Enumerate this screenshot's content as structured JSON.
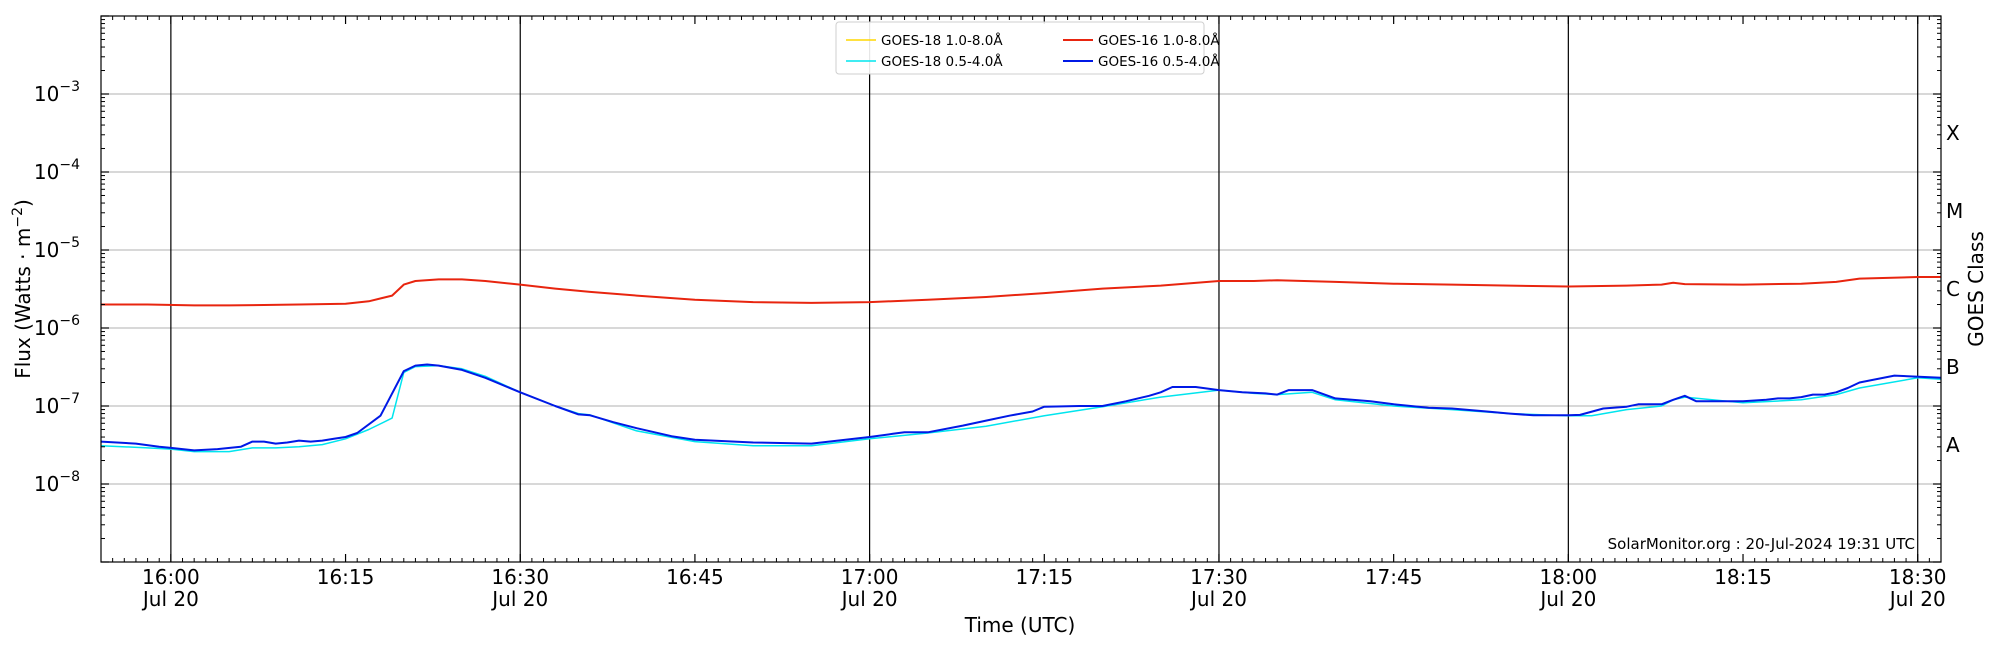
{
  "chart_data": {
    "type": "line",
    "title": "",
    "xlabel": "Time (UTC)",
    "ylabel": "Flux (Watts · m",
    "ylabel_exp": "−2",
    "ylabel_close": ")",
    "y2label": "GOES Class",
    "yscale": "log",
    "ylim": [
      1e-09,
      0.01
    ],
    "xlim": [
      "2024-07-20 15:54",
      "2024-07-20 18:32"
    ],
    "grid": "horizontal",
    "legend_placement": "top-center",
    "watermark": "SolarMonitor.org : 20-Jul-2024 19:31 UTC",
    "x_ticks": [
      {
        "t": "16:00",
        "label": "16:00",
        "sublabel": "Jul 20"
      },
      {
        "t": "16:15",
        "label": "16:15",
        "sublabel": ""
      },
      {
        "t": "16:30",
        "label": "16:30",
        "sublabel": "Jul 20"
      },
      {
        "t": "16:45",
        "label": "16:45",
        "sublabel": ""
      },
      {
        "t": "17:00",
        "label": "17:00",
        "sublabel": "Jul 20"
      },
      {
        "t": "17:15",
        "label": "17:15",
        "sublabel": ""
      },
      {
        "t": "17:30",
        "label": "17:30",
        "sublabel": "Jul 20"
      },
      {
        "t": "17:45",
        "label": "17:45",
        "sublabel": ""
      },
      {
        "t": "18:00",
        "label": "18:00",
        "sublabel": "Jul 20"
      },
      {
        "t": "18:15",
        "label": "18:15",
        "sublabel": ""
      },
      {
        "t": "18:30",
        "label": "18:30",
        "sublabel": "Jul 20"
      }
    ],
    "vlines": [
      "16:00",
      "16:30",
      "17:00",
      "17:30",
      "18:00",
      "18:30"
    ],
    "y_ticks": [
      {
        "exp": -8,
        "label": "10",
        "sup": "−8"
      },
      {
        "exp": -7,
        "label": "10",
        "sup": "−7"
      },
      {
        "exp": -6,
        "label": "10",
        "sup": "−6"
      },
      {
        "exp": -5,
        "label": "10",
        "sup": "−5"
      },
      {
        "exp": -4,
        "label": "10",
        "sup": "−4"
      },
      {
        "exp": -3,
        "label": "10",
        "sup": "−3"
      }
    ],
    "goes_classes": [
      {
        "label": "A",
        "center_exp": -7.5
      },
      {
        "label": "B",
        "center_exp": -6.5
      },
      {
        "label": "C",
        "center_exp": -5.5
      },
      {
        "label": "M",
        "center_exp": -4.5
      },
      {
        "label": "X",
        "center_exp": -3.5
      }
    ],
    "series": [
      {
        "name": "GOES-18 1.0-8.0Å",
        "color": "#ffd700",
        "width": 1.2,
        "x": [],
        "y": []
      },
      {
        "name": "GOES-16 1.0-8.0Å",
        "color": "#e8250f",
        "width": 2,
        "x": [
          "15:54",
          "15:58",
          "16:02",
          "16:05",
          "16:08",
          "16:11",
          "16:15",
          "16:17",
          "16:19",
          "16:20",
          "16:21",
          "16:23",
          "16:25",
          "16:27",
          "16:30",
          "16:33",
          "16:36",
          "16:40",
          "16:45",
          "16:50",
          "16:55",
          "17:00",
          "17:05",
          "17:10",
          "17:15",
          "17:20",
          "17:25",
          "17:30",
          "17:33",
          "17:35",
          "17:40",
          "17:45",
          "17:50",
          "17:55",
          "18:00",
          "18:05",
          "18:08",
          "18:09",
          "18:10",
          "18:15",
          "18:20",
          "18:23",
          "18:25",
          "18:30",
          "18:32"
        ],
        "y": [
          2e-06,
          2e-06,
          1.95e-06,
          1.95e-06,
          1.97e-06,
          2e-06,
          2.05e-06,
          2.2e-06,
          2.6e-06,
          3.6e-06,
          4e-06,
          4.2e-06,
          4.2e-06,
          4e-06,
          3.6e-06,
          3.2e-06,
          2.9e-06,
          2.6e-06,
          2.3e-06,
          2.15e-06,
          2.1e-06,
          2.15e-06,
          2.3e-06,
          2.5e-06,
          2.8e-06,
          3.2e-06,
          3.5e-06,
          4e-06,
          4e-06,
          4.1e-06,
          3.9e-06,
          3.7e-06,
          3.6e-06,
          3.5e-06,
          3.4e-06,
          3.5e-06,
          3.6e-06,
          3.8e-06,
          3.65e-06,
          3.6e-06,
          3.7e-06,
          3.9e-06,
          4.3e-06,
          4.5e-06,
          4.5e-06
        ]
      },
      {
        "name": "GOES-18 0.5-4.0Å",
        "color": "#00e5ee",
        "width": 1.5,
        "x": [
          "15:54",
          "15:58",
          "16:00",
          "16:02",
          "16:05",
          "16:07",
          "16:09",
          "16:11",
          "16:13",
          "16:15",
          "16:17",
          "16:19",
          "16:20",
          "16:21",
          "16:23",
          "16:25",
          "16:27",
          "16:30",
          "16:33",
          "16:35",
          "16:36",
          "16:40",
          "16:45",
          "16:50",
          "16:55",
          "17:00",
          "17:05",
          "17:10",
          "17:15",
          "17:20",
          "17:25",
          "17:30",
          "17:33",
          "17:35",
          "17:38",
          "17:40",
          "17:45",
          "17:50",
          "17:55",
          "18:00",
          "18:02",
          "18:05",
          "18:08",
          "18:09",
          "18:10",
          "18:15",
          "18:20",
          "18:23",
          "18:25",
          "18:30",
          "18:32"
        ],
        "y": [
          3.1e-08,
          2.9e-08,
          2.8e-08,
          2.6e-08,
          2.6e-08,
          2.9e-08,
          2.9e-08,
          3e-08,
          3.2e-08,
          3.8e-08,
          5e-08,
          7e-08,
          2.7e-07,
          3.2e-07,
          3.3e-07,
          3e-07,
          2.4e-07,
          1.5e-07,
          1e-07,
          8e-08,
          7.7e-08,
          4.8e-08,
          3.5e-08,
          3.1e-08,
          3.1e-08,
          3.8e-08,
          4.5e-08,
          5.5e-08,
          7.5e-08,
          9.8e-08,
          1.3e-07,
          1.6e-07,
          1.45e-07,
          1.4e-07,
          1.5e-07,
          1.2e-07,
          1e-07,
          9e-08,
          8e-08,
          7.5e-08,
          7.5e-08,
          9e-08,
          1e-07,
          1.2e-07,
          1.3e-07,
          1.1e-07,
          1.2e-07,
          1.4e-07,
          1.7e-07,
          2.3e-07,
          2.2e-07
        ]
      },
      {
        "name": "GOES-16 0.5-4.0Å",
        "color": "#0019e6",
        "width": 2,
        "x": [
          "15:54",
          "15:57",
          "15:59",
          "16:00",
          "16:02",
          "16:04",
          "16:06",
          "16:07",
          "16:08",
          "16:09",
          "16:10",
          "16:11",
          "16:12",
          "16:13",
          "16:14",
          "16:15",
          "16:16",
          "16:18",
          "16:20",
          "16:21",
          "16:22",
          "16:23",
          "16:25",
          "16:27",
          "16:30",
          "16:33",
          "16:35",
          "16:36",
          "16:38",
          "16:40",
          "16:43",
          "16:45",
          "16:50",
          "16:55",
          "17:00",
          "17:02",
          "17:03",
          "17:05",
          "17:08",
          "17:10",
          "17:12",
          "17:14",
          "17:15",
          "17:18",
          "17:20",
          "17:22",
          "17:24",
          "17:25",
          "17:26",
          "17:28",
          "17:30",
          "17:32",
          "17:34",
          "17:35",
          "17:36",
          "17:38",
          "17:40",
          "17:43",
          "17:45",
          "17:48",
          "17:50",
          "17:53",
          "17:55",
          "17:57",
          "18:00",
          "18:01",
          "18:03",
          "18:05",
          "18:06",
          "18:07",
          "18:08",
          "18:09",
          "18:10",
          "18:11",
          "18:13",
          "18:15",
          "18:17",
          "18:18",
          "18:19",
          "18:20",
          "18:21",
          "18:22",
          "18:23",
          "18:24",
          "18:25",
          "18:28",
          "18:32"
        ],
        "y": [
          3.5e-08,
          3.3e-08,
          3e-08,
          2.9e-08,
          2.7e-08,
          2.8e-08,
          3e-08,
          3.5e-08,
          3.5e-08,
          3.3e-08,
          3.4e-08,
          3.6e-08,
          3.5e-08,
          3.6e-08,
          3.8e-08,
          4e-08,
          4.5e-08,
          7.5e-08,
          2.8e-07,
          3.3e-07,
          3.4e-07,
          3.3e-07,
          2.9e-07,
          2.3e-07,
          1.5e-07,
          1e-07,
          7.8e-08,
          7.6e-08,
          6.2e-08,
          5.2e-08,
          4.1e-08,
          3.7e-08,
          3.4e-08,
          3.3e-08,
          4e-08,
          4.4e-08,
          4.6e-08,
          4.6e-08,
          5.6e-08,
          6.5e-08,
          7.5e-08,
          8.5e-08,
          9.8e-08,
          1e-07,
          1e-07,
          1.15e-07,
          1.35e-07,
          1.5e-07,
          1.75e-07,
          1.75e-07,
          1.6e-07,
          1.5e-07,
          1.45e-07,
          1.4e-07,
          1.6e-07,
          1.6e-07,
          1.25e-07,
          1.15e-07,
          1.05e-07,
          9.5e-08,
          9.3e-08,
          8.5e-08,
          8e-08,
          7.6e-08,
          7.6e-08,
          7.7e-08,
          9.3e-08,
          9.8e-08,
          1.05e-07,
          1.05e-07,
          1.05e-07,
          1.2e-07,
          1.35e-07,
          1.15e-07,
          1.15e-07,
          1.15e-07,
          1.2e-07,
          1.25e-07,
          1.25e-07,
          1.3e-07,
          1.4e-07,
          1.4e-07,
          1.5e-07,
          1.7e-07,
          2e-07,
          2.45e-07,
          2.3e-07
        ]
      }
    ]
  }
}
